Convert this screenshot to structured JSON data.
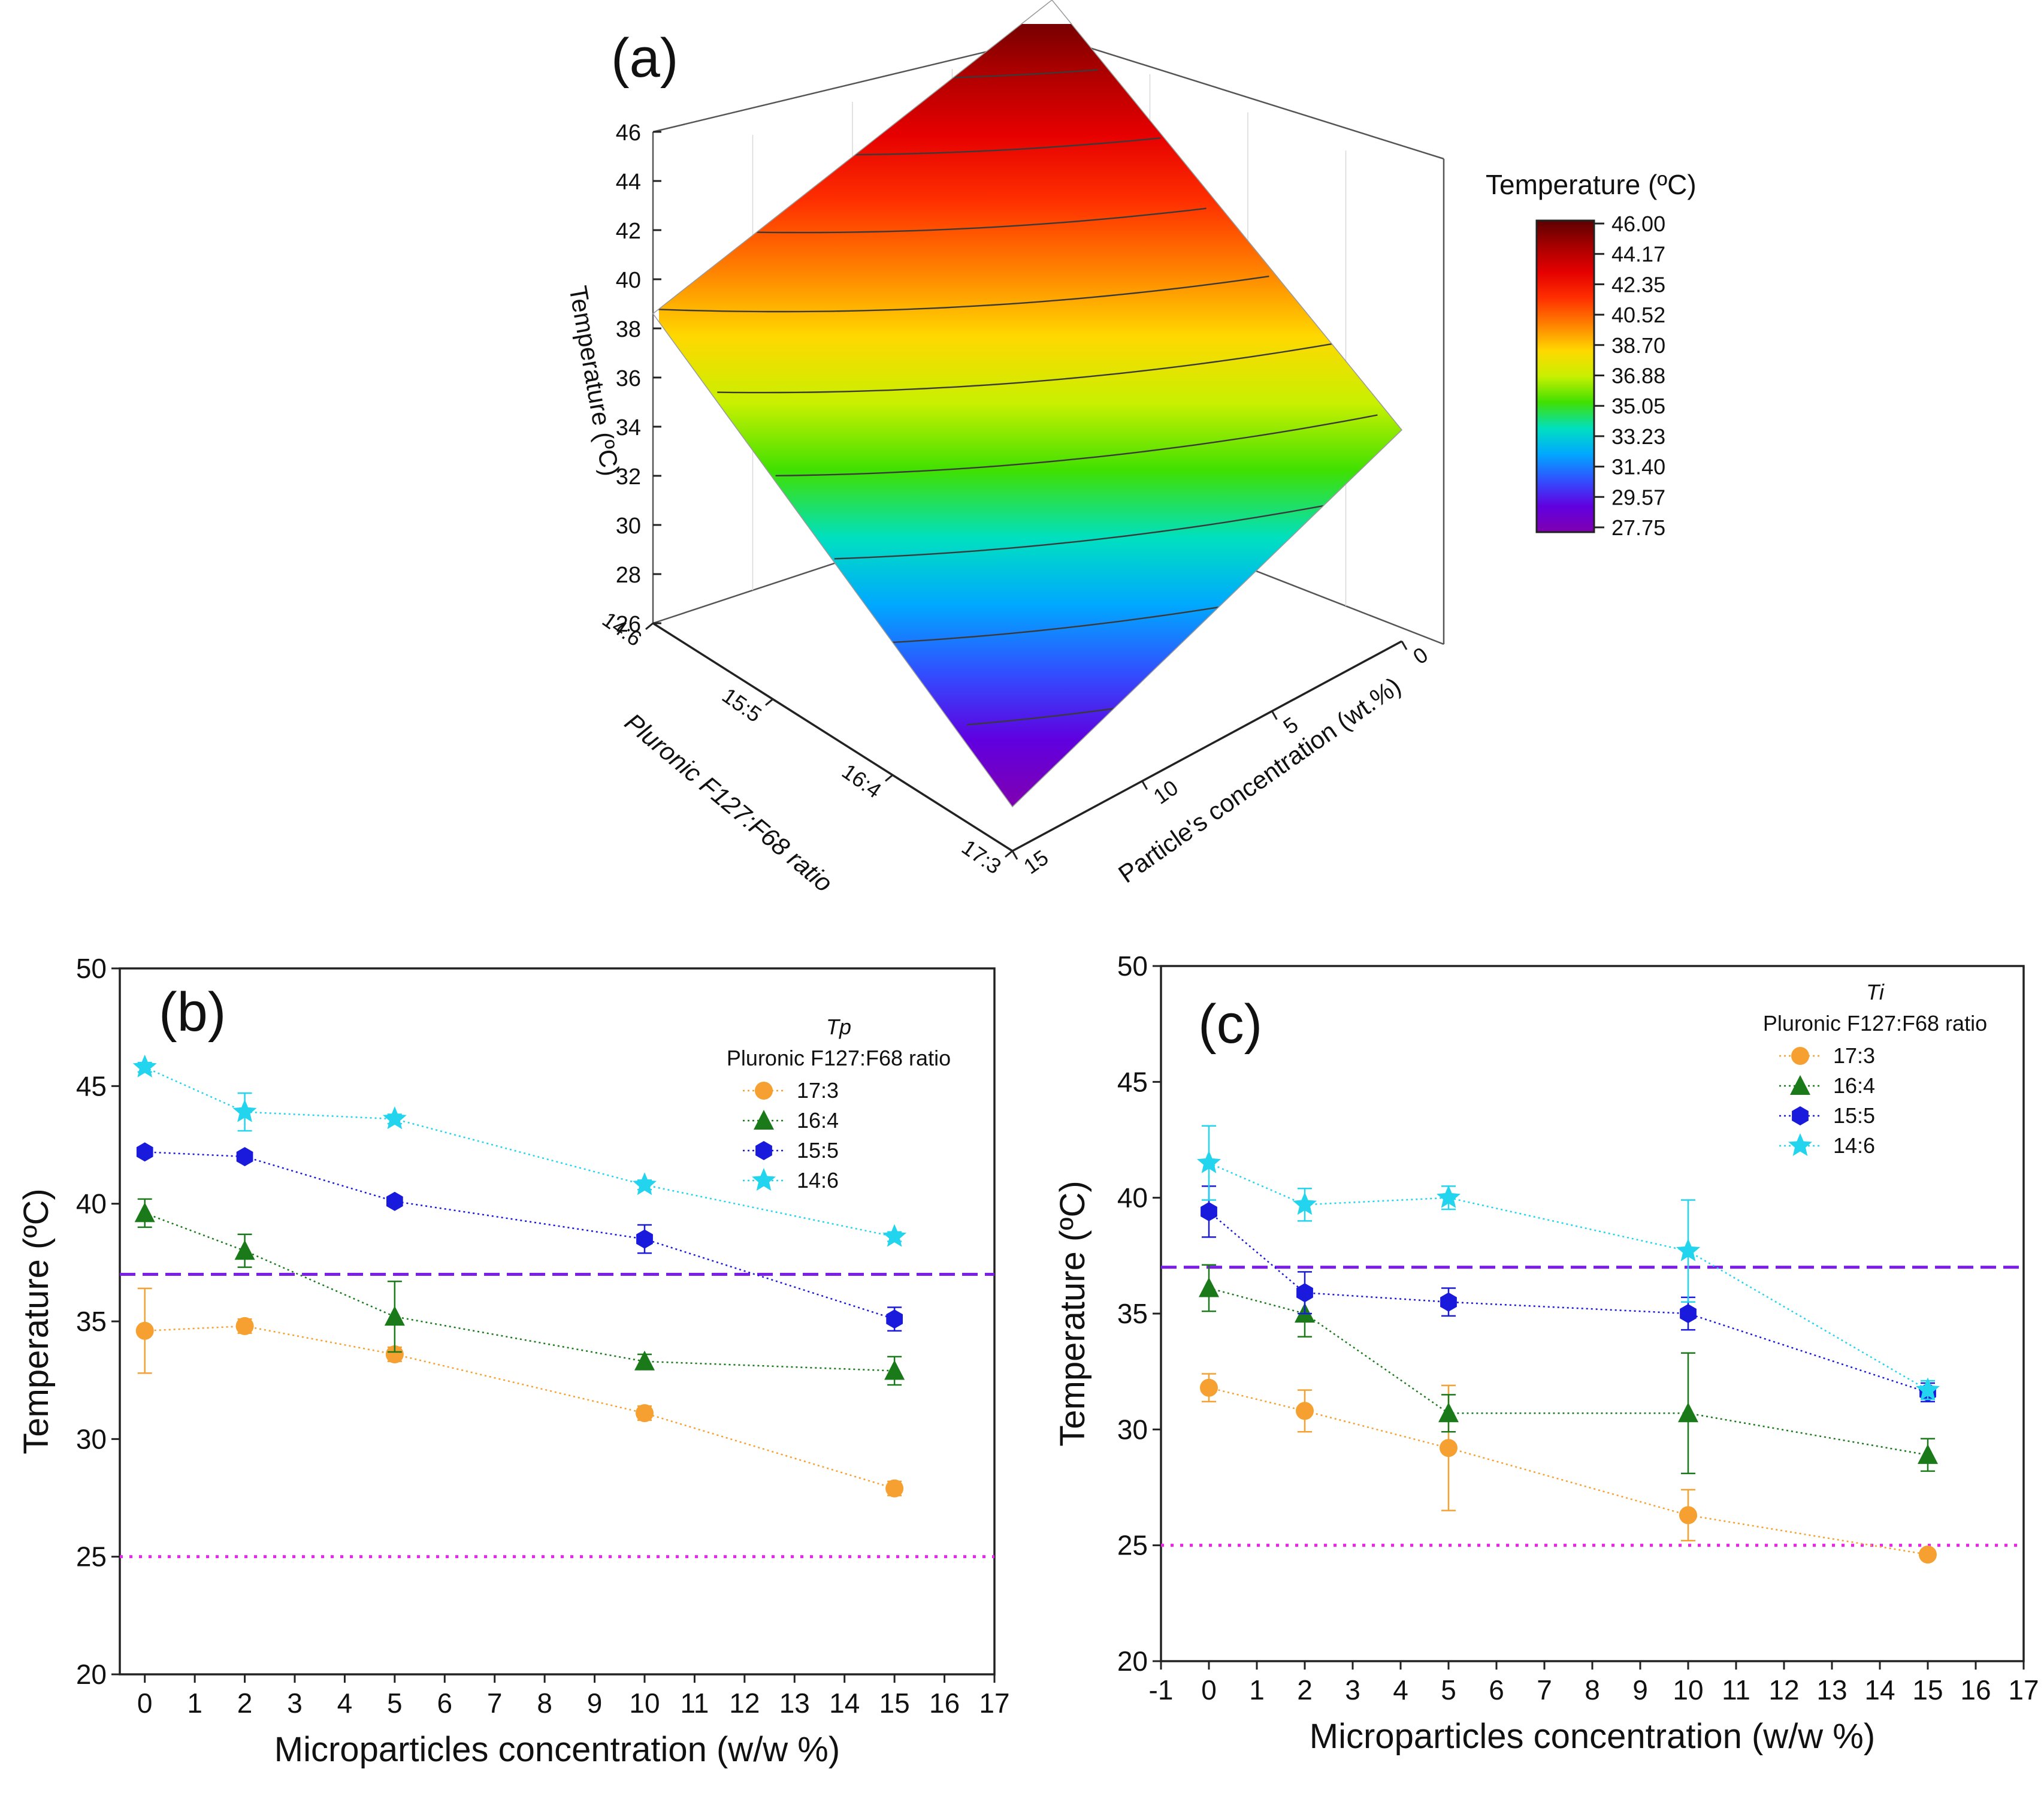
{
  "chart_data": [
    {
      "panel": "(a)",
      "type": "surface3d",
      "title": "",
      "zlabel": "Temperature (ºC)",
      "zticks": [
        26,
        28,
        30,
        32,
        34,
        36,
        38,
        40,
        42,
        44,
        46
      ],
      "zlim": [
        26,
        46
      ],
      "ylabel": "Pluronic F127:F68 ratio",
      "ratio_categories": [
        "14:6",
        "15:5",
        "16:4",
        "17:3"
      ],
      "xlabel": "Particle's concentration (wt.%)",
      "x_ticks": [
        0,
        5,
        10,
        15
      ],
      "corner_values": {
        "ratio_14_6_conc_0": 46,
        "ratio_14_6_conc_15": 38.6,
        "ratio_17_3_conc_0": 34.6,
        "ratio_17_3_conc_15": 27.8
      },
      "colorbar": {
        "title": "Temperature (ºC)",
        "labels": [
          "46.00",
          "44.17",
          "42.35",
          "40.52",
          "38.70",
          "36.88",
          "35.05",
          "33.23",
          "31.40",
          "29.57",
          "27.75"
        ],
        "colors": [
          "#5c0000",
          "#a80000",
          "#e60000",
          "#ff3000",
          "#ff8000",
          "#ffd800",
          "#c8f000",
          "#40e000",
          "#00e0c0",
          "#00a8ff",
          "#3050ff",
          "#6000e0",
          "#8000b0"
        ]
      }
    },
    {
      "panel": "(b)",
      "type": "line",
      "xlabel": "Microparticles concentration (w/w %)",
      "ylabel": "Temperature (ºC)",
      "xlim": [
        -0.5,
        17
      ],
      "ylim": [
        20,
        50
      ],
      "xticks": [
        0,
        1,
        2,
        3,
        4,
        5,
        6,
        7,
        8,
        9,
        10,
        11,
        12,
        13,
        14,
        15,
        16,
        17
      ],
      "yticks": [
        20,
        25,
        30,
        35,
        40,
        45,
        50
      ],
      "legend_title_italic": "Tp",
      "legend_title": "Pluronic F127:F68 ratio",
      "x": [
        0,
        2,
        5,
        10,
        15
      ],
      "series": [
        {
          "name": "17:3",
          "marker": "circle",
          "color": "#f5a030",
          "values": [
            34.6,
            34.8,
            33.6,
            31.1,
            27.9
          ],
          "errors": [
            1.8,
            0.3,
            0.3,
            0.3,
            0.3
          ]
        },
        {
          "name": "16:4",
          "marker": "triangle",
          "color": "#1a7a1a",
          "values": [
            39.6,
            38.0,
            35.2,
            33.3,
            32.9
          ],
          "errors": [
            0.6,
            0.7,
            1.5,
            0.3,
            0.6
          ]
        },
        {
          "name": "15:5",
          "marker": "hexagon",
          "color": "#1a1adc",
          "values": [
            42.2,
            42.0,
            40.1,
            38.5,
            35.1
          ],
          "errors": [
            0.2,
            0.2,
            0.2,
            0.6,
            0.5
          ]
        },
        {
          "name": "14:6",
          "marker": "star",
          "color": "#22d4ee",
          "values": [
            45.8,
            43.9,
            43.6,
            40.8,
            38.6
          ],
          "errors": [
            0.2,
            0.8,
            0.2,
            0.2,
            0.2
          ]
        }
      ],
      "reference_lines": [
        {
          "y": 37,
          "style": "dashed",
          "color": "#7b1ee8"
        },
        {
          "y": 25,
          "style": "dotted",
          "color": "#ee22ee"
        }
      ]
    },
    {
      "panel": "(c)",
      "type": "line",
      "xlabel": "Microparticles concentration (w/w %)",
      "ylabel": "Temperature (ºC)",
      "xlim": [
        -1,
        17
      ],
      "ylim": [
        20,
        50
      ],
      "xticks": [
        -1,
        0,
        1,
        2,
        3,
        4,
        5,
        6,
        7,
        8,
        9,
        10,
        11,
        12,
        13,
        14,
        15,
        16,
        17
      ],
      "yticks": [
        20,
        25,
        30,
        35,
        40,
        45,
        50
      ],
      "legend_title_italic": "Ti",
      "legend_title": "Pluronic F127:F68 ratio",
      "x": [
        0,
        2,
        5,
        10,
        15
      ],
      "series": [
        {
          "name": "17:3",
          "marker": "circle",
          "color": "#f5a030",
          "values": [
            31.8,
            30.8,
            29.2,
            26.3,
            24.6
          ],
          "errors": [
            0.6,
            0.9,
            2.7,
            1.1,
            0.2
          ]
        },
        {
          "name": "16:4",
          "marker": "triangle",
          "color": "#1a7a1a",
          "values": [
            36.1,
            35.0,
            30.7,
            30.7,
            28.9
          ],
          "errors": [
            1.0,
            1.0,
            0.8,
            2.6,
            0.7
          ]
        },
        {
          "name": "15:5",
          "marker": "hexagon",
          "color": "#1a1adc",
          "values": [
            39.4,
            35.9,
            35.5,
            35.0,
            31.6
          ],
          "errors": [
            1.1,
            0.9,
            0.6,
            0.7,
            0.4
          ]
        },
        {
          "name": "14:6",
          "marker": "star",
          "color": "#22d4ee",
          "values": [
            41.5,
            39.7,
            40.0,
            37.7,
            31.7
          ],
          "errors": [
            1.6,
            0.7,
            0.5,
            2.2,
            0.4
          ]
        }
      ],
      "reference_lines": [
        {
          "y": 37,
          "style": "dashed",
          "color": "#7b1ee8"
        },
        {
          "y": 25,
          "style": "dotted",
          "color": "#ee22ee"
        }
      ]
    }
  ]
}
